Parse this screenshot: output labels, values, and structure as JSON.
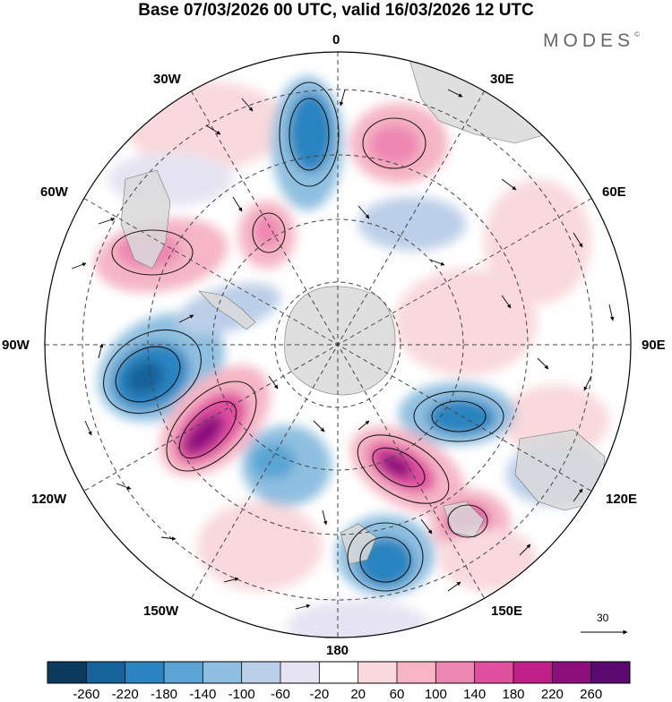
{
  "title": "Base 07/03/2026 00 UTC, valid 16/03/2026 12 UTC",
  "brand": "MODES",
  "brand_mark": "©",
  "longitude_labels": {
    "top": "0",
    "top_left": "30W",
    "top_right": "30E",
    "upper_left": "60W",
    "upper_right": "60E",
    "left": "90W",
    "right": "90E",
    "lower_left": "120W",
    "lower_right": "120E",
    "bottom_left": "150W",
    "bottom_right": "150E",
    "bottom": "180"
  },
  "reference_vector": {
    "label": "30"
  },
  "colorbar": {
    "ticks": [
      "-260",
      "-220",
      "-180",
      "-140",
      "-100",
      "-60",
      "-20",
      "20",
      "60",
      "100",
      "140",
      "180",
      "220",
      "260"
    ],
    "colors": [
      "#0b3b5c",
      "#16629a",
      "#2b84c0",
      "#5aa5d4",
      "#8fbfe0",
      "#bccfe8",
      "#e6e4f2",
      "#ffffff",
      "#f9d9db",
      "#f5b5c5",
      "#ee86b2",
      "#e0509f",
      "#c1208b",
      "#8d0f7e",
      "#5a0a6e"
    ]
  },
  "colors": {
    "land": "#d9d9d9",
    "grid": "#444444",
    "arrow": "#000000"
  }
}
